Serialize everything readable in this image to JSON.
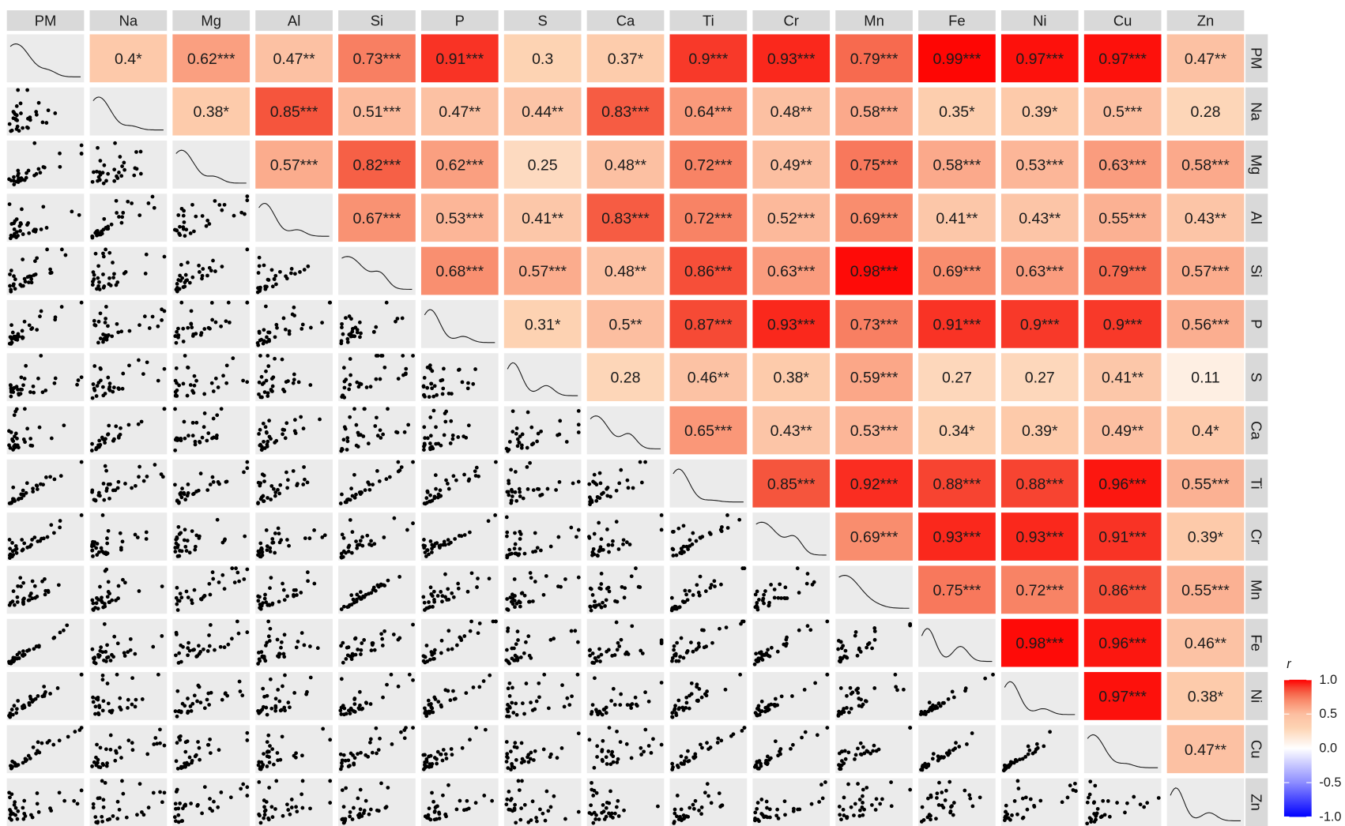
{
  "chart_data": {
    "type": "pairs",
    "variables": [
      "PM",
      "Na",
      "Mg",
      "Al",
      "Si",
      "P",
      "S",
      "Ca",
      "Ti",
      "Cr",
      "Mn",
      "Fe",
      "Ni",
      "Cu",
      "Zn"
    ],
    "correlations": {
      "values": [
        [
          0.4,
          0.62,
          0.47,
          0.73,
          0.91,
          0.3,
          0.37,
          0.9,
          0.93,
          0.79,
          0.99,
          0.97,
          0.97,
          0.47
        ],
        [
          0.38,
          0.85,
          0.51,
          0.47,
          0.44,
          0.83,
          0.64,
          0.48,
          0.58,
          0.35,
          0.39,
          0.5,
          0.28
        ],
        [
          0.57,
          0.82,
          0.62,
          0.25,
          0.48,
          0.72,
          0.49,
          0.75,
          0.58,
          0.53,
          0.63,
          0.58
        ],
        [
          0.67,
          0.53,
          0.41,
          0.83,
          0.72,
          0.52,
          0.69,
          0.41,
          0.43,
          0.55,
          0.43
        ],
        [
          0.68,
          0.57,
          0.48,
          0.86,
          0.63,
          0.98,
          0.69,
          0.63,
          0.79,
          0.57
        ],
        [
          0.31,
          0.5,
          0.87,
          0.93,
          0.73,
          0.91,
          0.9,
          0.9,
          0.56
        ],
        [
          0.28,
          0.46,
          0.38,
          0.59,
          0.27,
          0.27,
          0.41,
          0.11
        ],
        [
          0.65,
          0.43,
          0.53,
          0.34,
          0.39,
          0.49,
          0.4
        ],
        [
          0.85,
          0.92,
          0.88,
          0.88,
          0.96,
          0.55
        ],
        [
          0.69,
          0.93,
          0.93,
          0.91,
          0.39
        ],
        [
          0.75,
          0.72,
          0.86,
          0.55
        ],
        [
          0.98,
          0.96,
          0.46
        ],
        [
          0.97,
          0.38
        ],
        [
          0.47
        ]
      ],
      "value_labels": [
        [
          "0.4*",
          "0.62***",
          "0.47**",
          "0.73***",
          "0.91***",
          "0.3",
          "0.37*",
          "0.9***",
          "0.93***",
          "0.79***",
          "0.99***",
          "0.97***",
          "0.97***",
          "0.47**"
        ],
        [
          "0.38*",
          "0.85***",
          "0.51***",
          "0.47**",
          "0.44**",
          "0.83***",
          "0.64***",
          "0.48**",
          "0.58***",
          "0.35*",
          "0.39*",
          "0.5***",
          "0.28"
        ],
        [
          "0.57***",
          "0.82***",
          "0.62***",
          "0.25",
          "0.48**",
          "0.72***",
          "0.49**",
          "0.75***",
          "0.58***",
          "0.53***",
          "0.63***",
          "0.58***"
        ],
        [
          "0.67***",
          "0.53***",
          "0.41**",
          "0.83***",
          "0.72***",
          "0.52***",
          "0.69***",
          "0.41**",
          "0.43**",
          "0.55***",
          "0.43**"
        ],
        [
          "0.68***",
          "0.57***",
          "0.48**",
          "0.86***",
          "0.63***",
          "0.98***",
          "0.69***",
          "0.63***",
          "0.79***",
          "0.57***"
        ],
        [
          "0.31*",
          "0.5**",
          "0.87***",
          "0.93***",
          "0.73***",
          "0.91***",
          "0.9***",
          "0.9***",
          "0.56***"
        ],
        [
          "0.28",
          "0.46**",
          "0.38*",
          "0.59***",
          "0.27",
          "0.27",
          "0.41**",
          "0.11"
        ],
        [
          "0.65***",
          "0.43**",
          "0.53***",
          "0.34*",
          "0.39*",
          "0.49**",
          "0.4*"
        ],
        [
          "0.85***",
          "0.92***",
          "0.88***",
          "0.88***",
          "0.96***",
          "0.55***"
        ],
        [
          "0.69***",
          "0.93***",
          "0.93***",
          "0.91***",
          "0.39*"
        ],
        [
          "0.75***",
          "0.72***",
          "0.86***",
          "0.55***"
        ],
        [
          "0.98***",
          "0.96***",
          "0.46**"
        ],
        [
          "0.97***",
          "0.38*"
        ],
        [
          "0.47**"
        ]
      ]
    },
    "legend": {
      "title": "r",
      "lim": [
        -1,
        1
      ],
      "ticks": [
        {
          "value": 1,
          "label": "1.0"
        },
        0.5,
        {
          "value": 0,
          "label": "0.0"
        },
        -0.5,
        {
          "value": -1,
          "label": "-1.0"
        }
      ]
    },
    "colors": {
      "low": "#0000ff",
      "mid": "#ffffff",
      "high": "#ff0000"
    }
  }
}
